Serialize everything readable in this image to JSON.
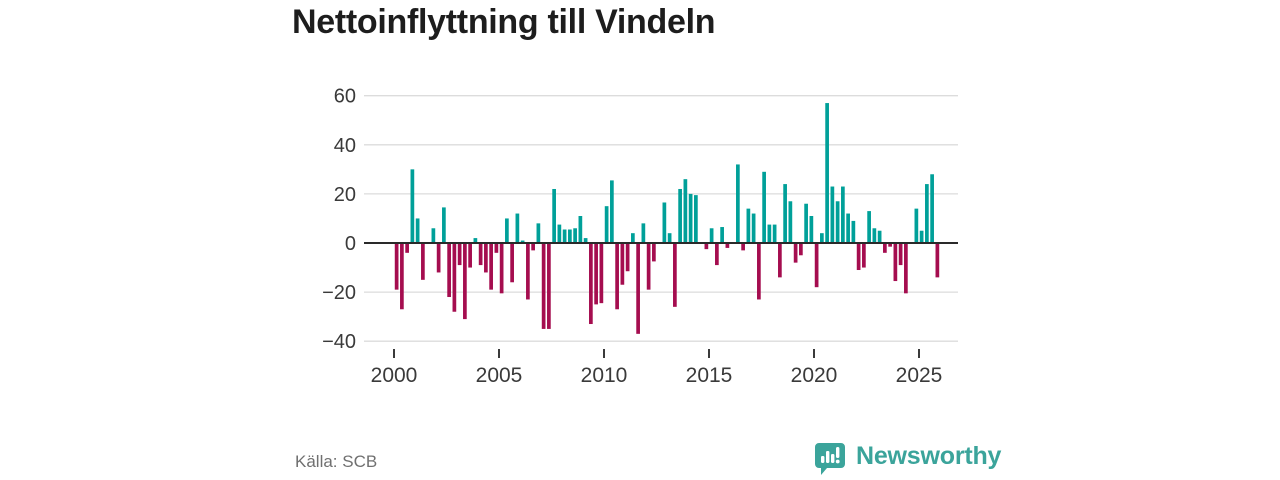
{
  "title": "Nettoinflyttning till Vindeln",
  "source_label": "Källa: SCB",
  "brand": {
    "name": "Newsworthy",
    "icon": "bar-chart-speech-bubble-icon",
    "color": "#3ba49b"
  },
  "colors": {
    "positive_bar": "#00a099",
    "negative_bar": "#a50d4f",
    "gridline": "#dcdcdc",
    "zero_line": "#2a2a2a",
    "axis_text": "#3a3a3a",
    "title_text": "#1d1d1d",
    "source_text": "#707070"
  },
  "chart_data": {
    "type": "bar",
    "title": "Nettoinflyttning till Vindeln",
    "xlabel": "",
    "ylabel": "",
    "frequency": "quarterly",
    "start": "2000-Q1",
    "end": "2025-Q4",
    "x_tick_years": [
      2000,
      2005,
      2010,
      2015,
      2020,
      2025
    ],
    "y_ticks": [
      60,
      40,
      20,
      0,
      -20,
      -40
    ],
    "ylim": [
      -45,
      65
    ],
    "grid": true,
    "legend": "none",
    "values": [
      -19,
      -27,
      -4,
      30,
      10,
      -15,
      0,
      6,
      -12,
      14.5,
      -22,
      -28,
      -9,
      -31,
      -10,
      2,
      -9,
      -12,
      -19,
      -4,
      -20.5,
      10,
      -16,
      12,
      1,
      -23,
      -3,
      8,
      -35,
      -35,
      22,
      7.5,
      5.5,
      5.5,
      6,
      11,
      2,
      -33,
      -25,
      -24.5,
      15,
      25.5,
      -27,
      -17,
      -11.5,
      4,
      -37,
      8,
      -19,
      -7.5,
      0,
      16.5,
      4,
      -26,
      22,
      26,
      20,
      19.5,
      0,
      -2.5,
      6,
      -9,
      6.5,
      -2,
      0,
      32,
      -3,
      14,
      12,
      -23,
      29,
      7.5,
      7.5,
      -14,
      24,
      17,
      -8,
      -5,
      16,
      11,
      -18,
      4,
      57,
      23,
      17,
      23,
      12,
      9,
      -11,
      -10,
      13,
      6,
      5,
      -4,
      -1.5,
      -15.5,
      -9,
      -20.5,
      0,
      14,
      5,
      24,
      28,
      -14
    ]
  }
}
